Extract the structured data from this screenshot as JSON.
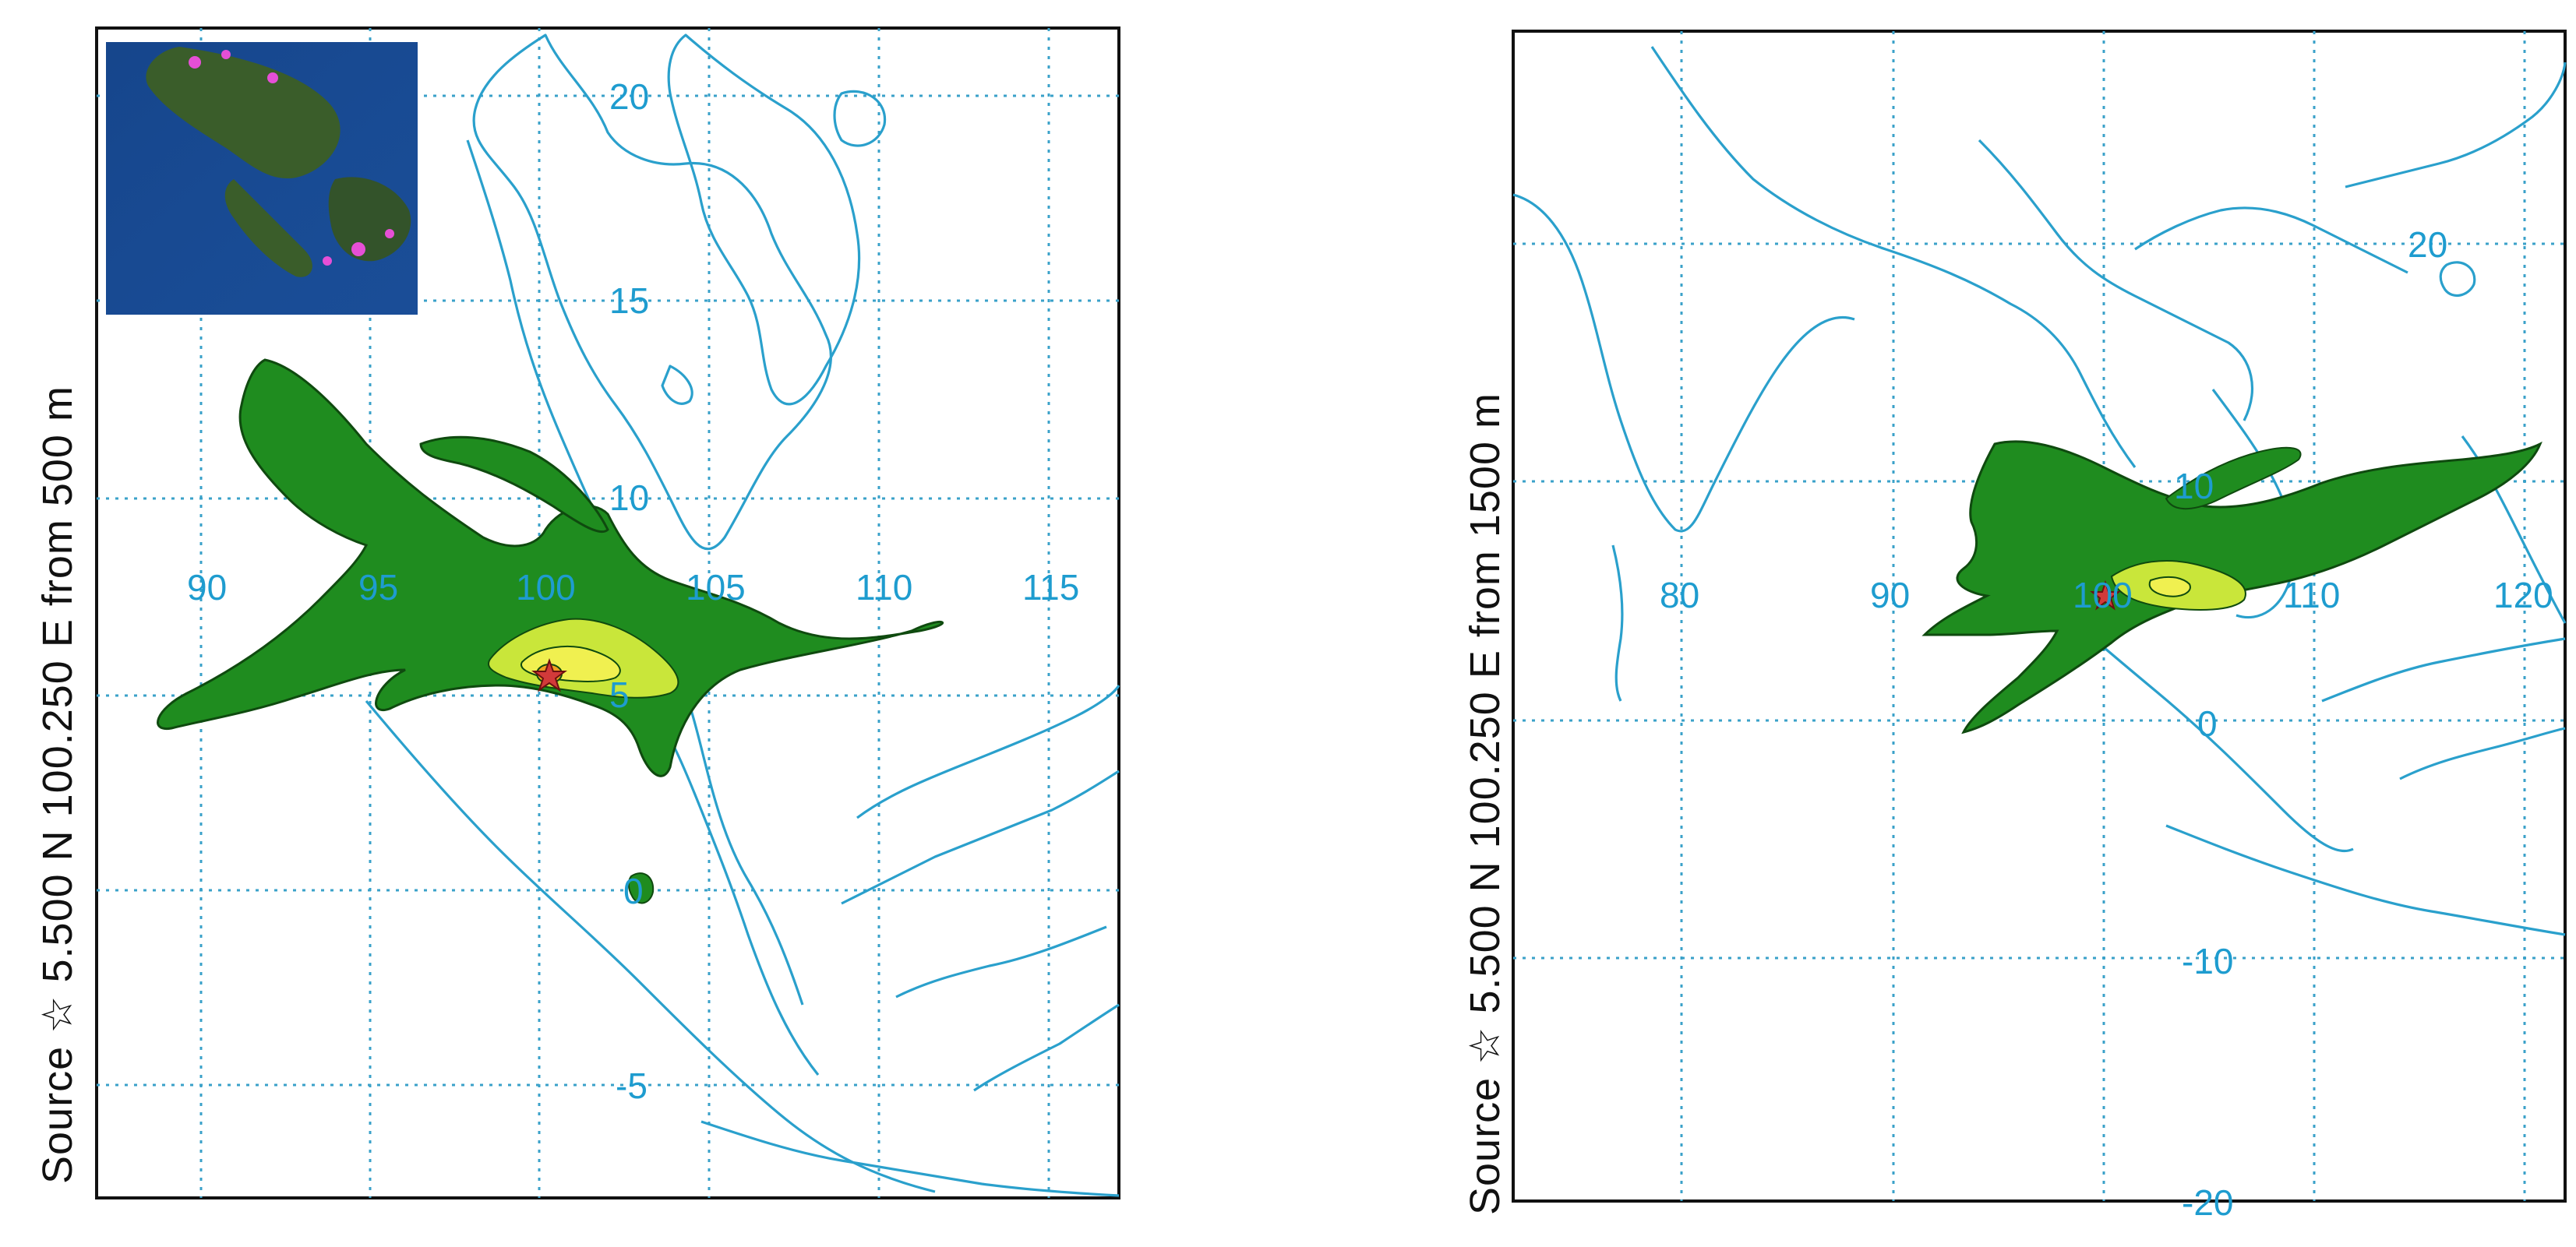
{
  "panels": [
    {
      "side_label": "Source ☆ 5.500 N 100.250 E from 500 m",
      "tick_labels": [
        "20",
        "15",
        "10",
        "90",
        "95",
        "100",
        "105",
        "110",
        "115",
        "5",
        "0",
        "-5"
      ]
    },
    {
      "side_label": "Source ☆ 5.500 N 100.250 E from 1500 m",
      "tick_labels": [
        "20",
        "10",
        "80",
        "90",
        "100",
        "110",
        "120",
        "0",
        "-10",
        "-20"
      ]
    }
  ],
  "colors": {
    "coastline": "#2aa0cc",
    "gridline": "#3aa1c9",
    "plume_outer": "#1f8c1f",
    "plume_mid": "#c9e63a",
    "plume_inner": "#f0f050",
    "plume_core": "#f0a020",
    "source_star": "#d23a3a"
  },
  "icons": [
    "source-star-icon",
    "satellite-inset-map"
  ]
}
